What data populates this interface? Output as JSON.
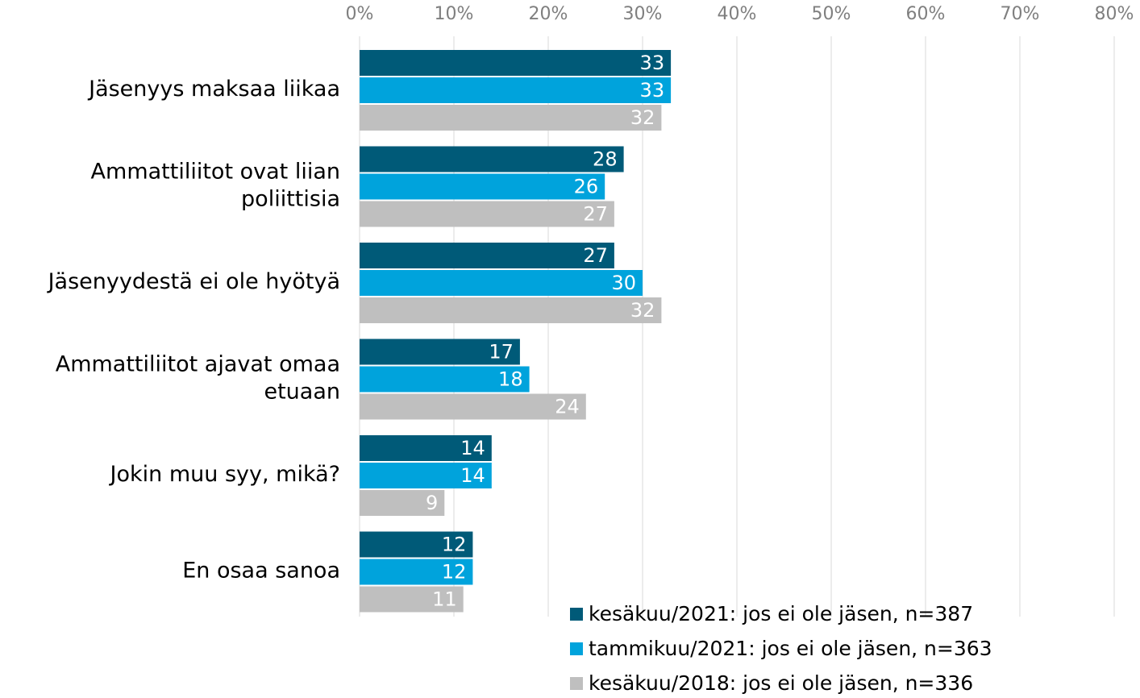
{
  "chart_data": {
    "type": "barh",
    "categories": [
      "Jäsenyys maksaa liikaa",
      "Ammattiliitot ovat liian poliittisia",
      "Jäsenyydestä ei ole hyötyä",
      "Ammattiliitot ajavat omaa etuaan",
      "Jokin muu syy, mikä?",
      "En osaa sanoa"
    ],
    "series": [
      {
        "name": "kesäkuu/2021: jos ei ole jäsen, n=387",
        "color": "#005a78",
        "values": [
          33,
          28,
          27,
          17,
          14,
          12
        ]
      },
      {
        "name": "tammikuu/2021: jos ei ole jäsen, n=363",
        "color": "#00a3dc",
        "values": [
          33,
          26,
          30,
          18,
          14,
          12
        ]
      },
      {
        "name": "kesäkuu/2018: jos ei ole jäsen, n=336",
        "color": "#bfbfbf",
        "values": [
          32,
          27,
          32,
          24,
          9,
          11
        ]
      }
    ],
    "xlim": [
      0,
      80
    ],
    "xticks": [
      {
        "value": 0,
        "label": "0%"
      },
      {
        "value": 10,
        "label": "10%"
      },
      {
        "value": 20,
        "label": "20%"
      },
      {
        "value": 30,
        "label": "30%"
      },
      {
        "value": 40,
        "label": "40%"
      },
      {
        "value": 50,
        "label": "50%"
      },
      {
        "value": 60,
        "label": "60%"
      },
      {
        "value": 70,
        "label": "70%"
      },
      {
        "value": 80,
        "label": "80%"
      }
    ],
    "grid": true
  }
}
